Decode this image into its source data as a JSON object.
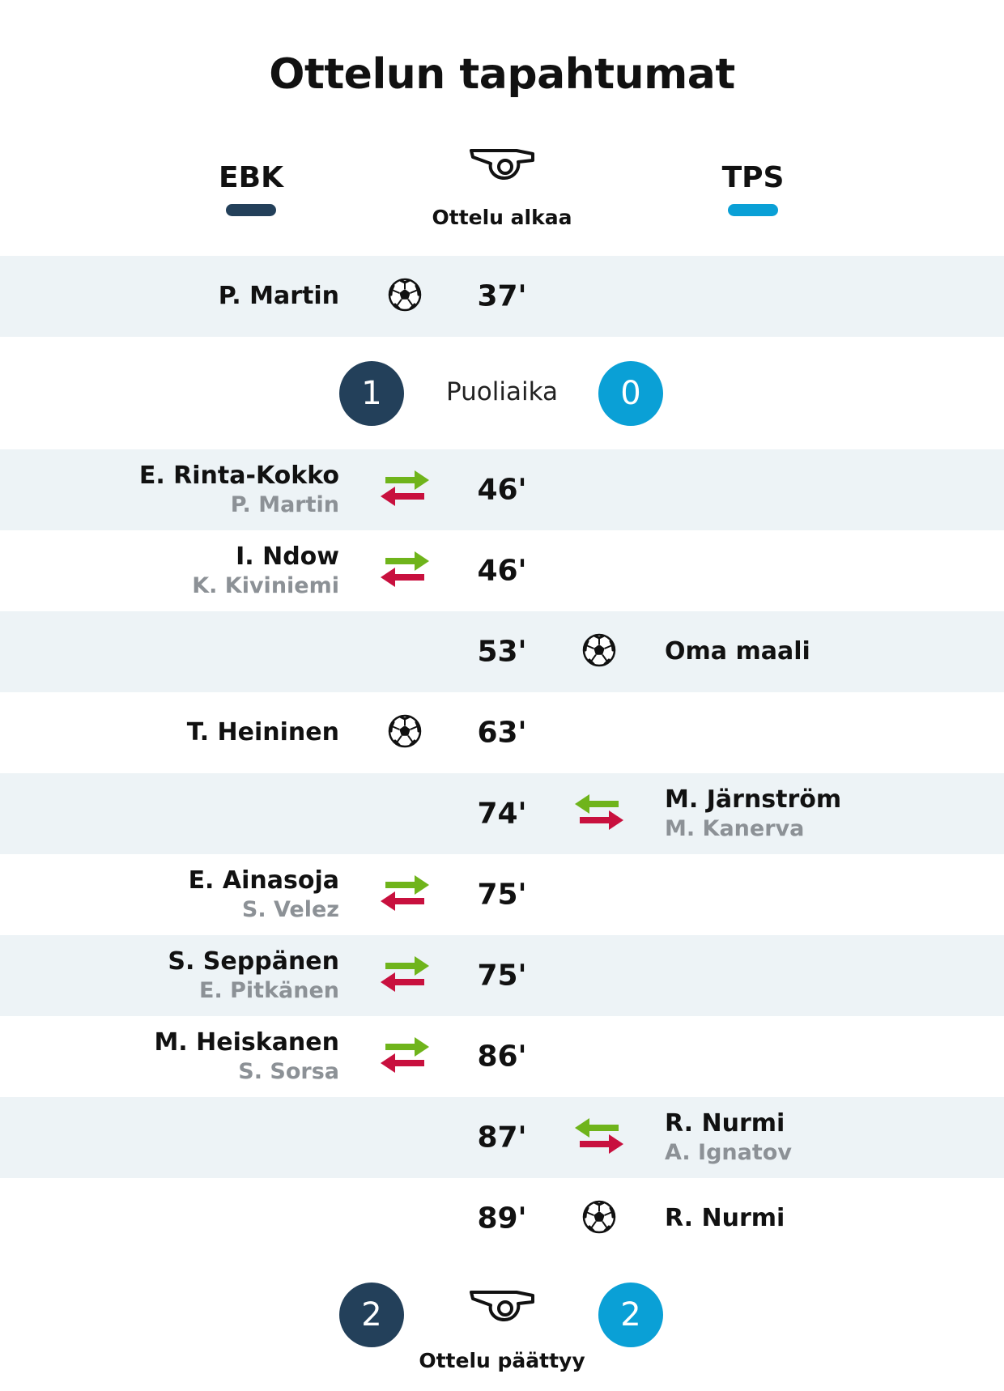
{
  "title": "Ottelun tapahtumat",
  "colors": {
    "home": "#23405a",
    "away": "#0aa0d6",
    "row_shade": "#edf3f6",
    "sub_in": "#6fb41b",
    "sub_out": "#c8103e"
  },
  "teams": {
    "home": "EBK",
    "away": "TPS"
  },
  "start": {
    "label": "Ottelu alkaa",
    "icon": "whistle-icon"
  },
  "halftime": {
    "label": "Puoliaika",
    "home_score": "1",
    "away_score": "0"
  },
  "events": [
    {
      "minute": "37'",
      "side": "home",
      "type": "goal",
      "name": "P. Martin",
      "sub": ""
    },
    {
      "minute": "46'",
      "side": "home",
      "type": "substitution",
      "name": "E. Rinta-Kokko",
      "sub": "P. Martin"
    },
    {
      "minute": "46'",
      "side": "home",
      "type": "substitution",
      "name": "I. Ndow",
      "sub": "K. Kiviniemi"
    },
    {
      "minute": "53'",
      "side": "away",
      "type": "goal",
      "name": "Oma maali",
      "sub": ""
    },
    {
      "minute": "63'",
      "side": "home",
      "type": "goal",
      "name": "T. Heininen",
      "sub": ""
    },
    {
      "minute": "74'",
      "side": "away",
      "type": "substitution",
      "name": "M. Järnström",
      "sub": "M. Kanerva"
    },
    {
      "minute": "75'",
      "side": "home",
      "type": "substitution",
      "name": "E. Ainasoja",
      "sub": "S. Velez"
    },
    {
      "minute": "75'",
      "side": "home",
      "type": "substitution",
      "name": "S. Seppänen",
      "sub": "E. Pitkänen"
    },
    {
      "minute": "86'",
      "side": "home",
      "type": "substitution",
      "name": "M. Heiskanen",
      "sub": "S. Sorsa"
    },
    {
      "minute": "87'",
      "side": "away",
      "type": "substitution",
      "name": "R. Nurmi",
      "sub": "A. Ignatov"
    },
    {
      "minute": "89'",
      "side": "away",
      "type": "goal",
      "name": "R. Nurmi",
      "sub": ""
    }
  ],
  "final": {
    "label": "Ottelu päättyy",
    "home_score": "2",
    "away_score": "2",
    "icon": "whistle-icon"
  }
}
